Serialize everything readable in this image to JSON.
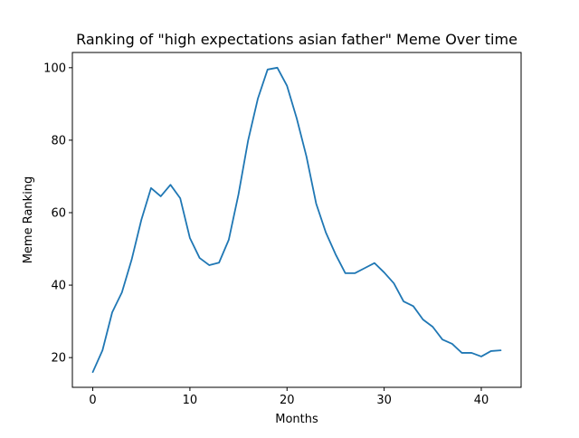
{
  "chart_data": {
    "type": "line",
    "title": "Ranking of \"high expectations asian father\" Meme Over time",
    "xlabel": "Months",
    "ylabel": "Meme Ranking",
    "xlim": [
      -2.1,
      44.1
    ],
    "ylim": [
      11.8,
      104.2
    ],
    "x_ticks": [
      0,
      10,
      20,
      30,
      40
    ],
    "y_ticks": [
      20,
      40,
      60,
      80,
      100
    ],
    "grid": false,
    "legend": "none",
    "series": [
      {
        "color": "#1f77b4",
        "x": [
          0,
          1,
          2,
          3,
          4,
          5,
          6,
          7,
          8,
          9,
          10,
          11,
          12,
          13,
          14,
          15,
          16,
          17,
          18,
          19,
          20,
          21,
          22,
          23,
          24,
          25,
          26,
          27,
          28,
          29,
          30,
          31,
          32,
          33,
          34,
          35,
          36,
          37,
          38,
          39,
          40,
          41,
          42
        ],
        "values": [
          16,
          22,
          32.5,
          38,
          47,
          58,
          66.8,
          64.5,
          67.7,
          64,
          53,
          47.5,
          45.5,
          46.2,
          52.5,
          65,
          80,
          91.5,
          99.5,
          100,
          95,
          86,
          75.5,
          62.5,
          54.5,
          48.5,
          43.3,
          43.3,
          44.7,
          46.1,
          43.5,
          40.5,
          35.5,
          34.2,
          30.5,
          28.5,
          25,
          23.8,
          21.3,
          21.3,
          20.3,
          21.8,
          22
        ]
      }
    ]
  }
}
